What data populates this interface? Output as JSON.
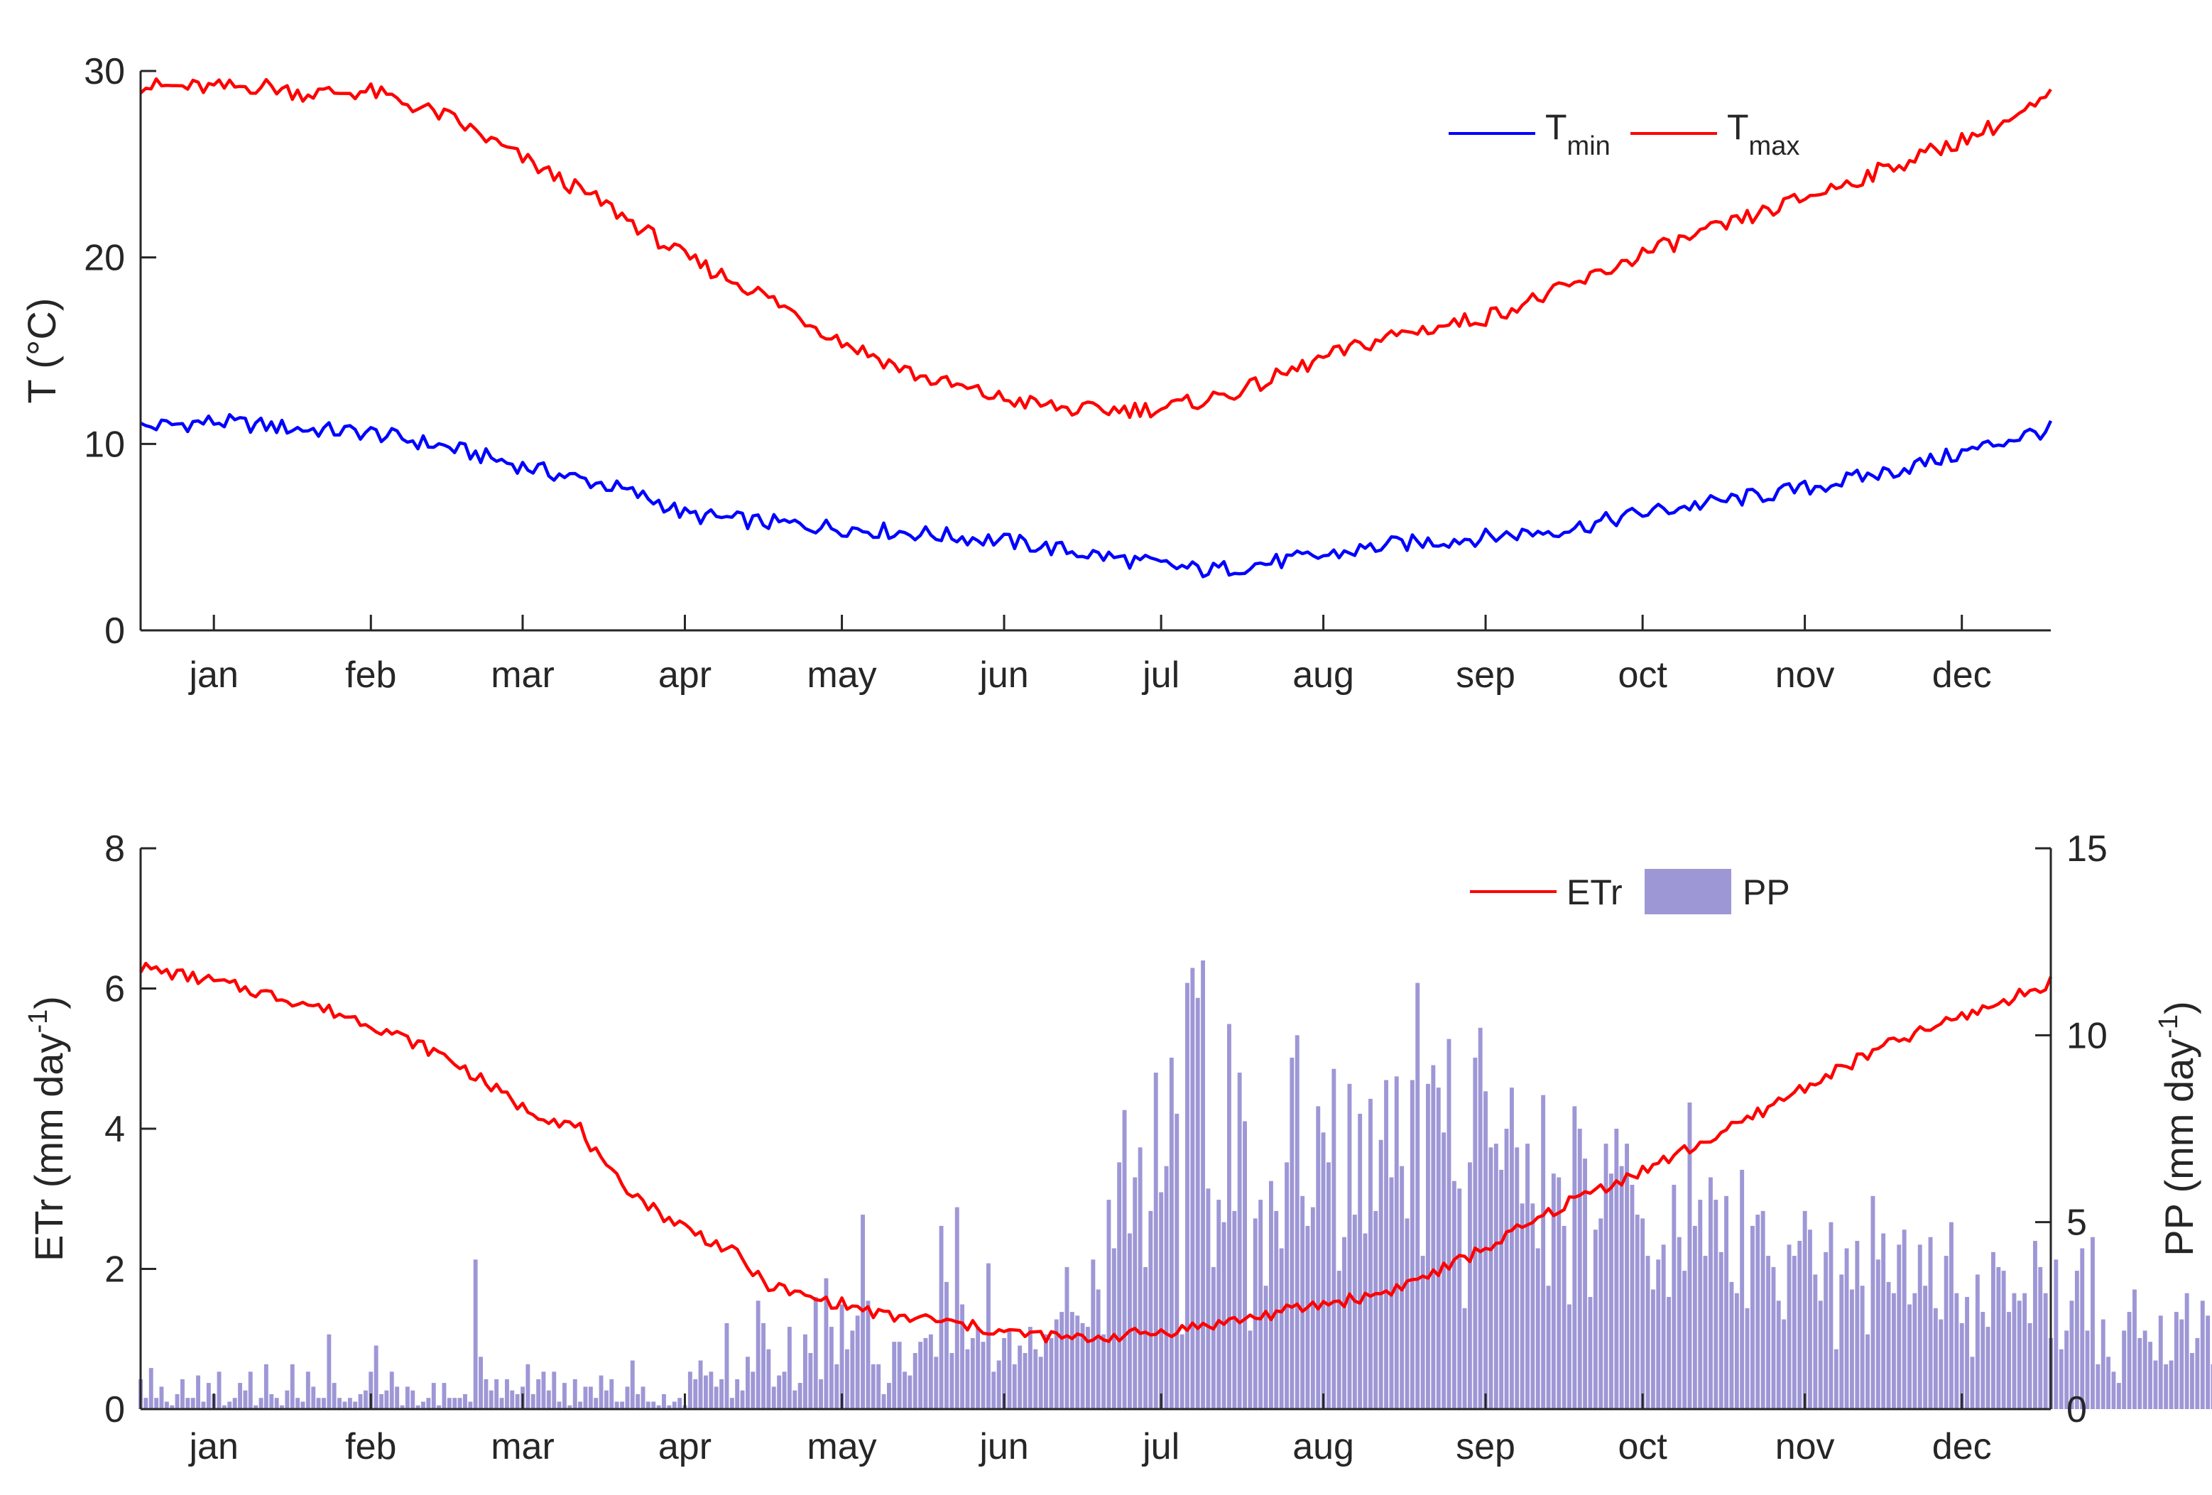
{
  "chart_data": [
    {
      "type": "line",
      "ylabel": "T (°C)",
      "ylim": [
        0,
        30
      ],
      "yticks": [
        0,
        10,
        20,
        30
      ],
      "xlim": [
        1,
        366
      ],
      "month_labels": [
        "jan",
        "feb",
        "mar",
        "apr",
        "may",
        "jun",
        "jul",
        "aug",
        "sep",
        "oct",
        "nov",
        "dec"
      ],
      "month_label_days": [
        15,
        45,
        74,
        105,
        135,
        166,
        196,
        227,
        258,
        288,
        319,
        349
      ],
      "grid": false,
      "legend_position": "top-right",
      "series": [
        {
          "legend_main": "T",
          "legend_sub": "min",
          "color": "#0000ff",
          "x": [
            1,
            15,
            32,
            45,
            60,
            74,
            90,
            100,
            105,
            120,
            135,
            150,
            166,
            180,
            196,
            205,
            213,
            227,
            240,
            258,
            275,
            288,
            305,
            319,
            335,
            349,
            360,
            366
          ],
          "y": [
            10.9,
            11.2,
            10.8,
            10.6,
            9.8,
            8.8,
            7.8,
            6.9,
            6.2,
            5.8,
            5.5,
            5.2,
            4.8,
            4.2,
            3.5,
            3.2,
            3.5,
            4.0,
            4.6,
            5.0,
            5.5,
            6.3,
            7.0,
            7.6,
            8.5,
            9.5,
            10.4,
            10.8
          ]
        },
        {
          "legend_main": "T",
          "legend_sub": "max",
          "color": "#ff0000",
          "x": [
            1,
            15,
            25,
            32,
            45,
            60,
            74,
            90,
            105,
            120,
            135,
            150,
            166,
            180,
            196,
            205,
            213,
            227,
            240,
            258,
            275,
            288,
            305,
            319,
            335,
            349,
            360,
            366
          ],
          "y": [
            29.2,
            29.1,
            29.2,
            28.8,
            28.9,
            27.5,
            25.3,
            22.8,
            20.0,
            18.0,
            15.5,
            13.6,
            12.4,
            11.8,
            11.9,
            12.4,
            13.0,
            14.6,
            15.8,
            16.8,
            18.5,
            20.2,
            21.8,
            23.2,
            24.8,
            26.3,
            27.6,
            28.6
          ]
        }
      ]
    },
    {
      "type": "bar+line",
      "ylabel_left": "ETr (mm day",
      "ylabel_right": "PP (mm day",
      "ylabel_exponent": "-1",
      "ylabel_close": ")",
      "ylim_left": [
        0,
        8
      ],
      "yticks_left": [
        0,
        2,
        4,
        6,
        8
      ],
      "ylim_right": [
        0,
        15
      ],
      "yticks_right": [
        0,
        5,
        10,
        15
      ],
      "xlim": [
        1,
        366
      ],
      "month_labels": [
        "jan",
        "feb",
        "mar",
        "apr",
        "may",
        "jun",
        "jul",
        "aug",
        "sep",
        "oct",
        "nov",
        "dec"
      ],
      "month_label_days": [
        15,
        45,
        74,
        105,
        135,
        166,
        196,
        227,
        258,
        288,
        319,
        349
      ],
      "grid": false,
      "legend_position": "top-right",
      "line_series": {
        "name": "ETr",
        "color": "#ff0000",
        "axis": "left",
        "x": [
          1,
          15,
          32,
          45,
          60,
          74,
          85,
          90,
          100,
          105,
          115,
          120,
          128,
          135,
          145,
          150,
          166,
          180,
          196,
          205,
          213,
          227,
          235,
          240,
          250,
          258,
          268,
          275,
          288,
          305,
          319,
          335,
          349,
          360,
          366
        ],
        "y": [
          6.3,
          6.1,
          5.8,
          5.5,
          5.0,
          4.3,
          4.0,
          3.4,
          2.8,
          2.6,
          2.2,
          1.8,
          1.6,
          1.5,
          1.3,
          1.3,
          1.1,
          1.0,
          1.1,
          1.2,
          1.3,
          1.5,
          1.6,
          1.7,
          2.0,
          2.3,
          2.7,
          3.0,
          3.4,
          4.0,
          4.6,
          5.2,
          5.6,
          5.9,
          6.1
        ]
      },
      "bar_series": {
        "name": "PP",
        "color": "#9e97d6",
        "axis": "right",
        "day_start": 1,
        "values": [
          0.8,
          0.3,
          1.1,
          0.3,
          0.6,
          0.2,
          0.1,
          0.4,
          0.8,
          0.3,
          0.3,
          0.9,
          0.2,
          0.7,
          0.4,
          1.0,
          0.1,
          0.2,
          0.3,
          0.7,
          0.5,
          1.0,
          0.1,
          0.3,
          1.2,
          0.4,
          0.3,
          0.1,
          0.5,
          1.2,
          0.3,
          0.2,
          1.0,
          0.6,
          0.3,
          0.3,
          2.0,
          0.7,
          0.3,
          0.2,
          0.3,
          0.2,
          0.4,
          0.5,
          1.0,
          1.7,
          0.4,
          0.5,
          1.0,
          0.6,
          0.1,
          0.6,
          0.5,
          0.1,
          0.2,
          0.3,
          0.7,
          0.1,
          0.7,
          0.3,
          0.3,
          0.3,
          0.4,
          0.2,
          4.0,
          1.4,
          0.8,
          0.5,
          0.8,
          0.3,
          0.8,
          0.5,
          0.4,
          0.6,
          1.2,
          0.4,
          0.8,
          1.0,
          0.5,
          1.0,
          0.2,
          0.7,
          0.1,
          0.8,
          0.2,
          0.6,
          0.6,
          0.3,
          0.9,
          0.5,
          0.8,
          0.2,
          0.2,
          0.6,
          1.3,
          0.4,
          0.6,
          0.2,
          0.2,
          0.1,
          0.4,
          0.1,
          0.2,
          0.3,
          0.1,
          1.0,
          0.8,
          1.3,
          0.9,
          1.0,
          0.6,
          0.8,
          2.3,
          0.3,
          0.8,
          0.5,
          1.4,
          1.0,
          2.9,
          2.3,
          1.6,
          0.6,
          0.9,
          1.0,
          2.2,
          0.5,
          0.7,
          2.0,
          1.5,
          3.0,
          0.8,
          3.5,
          2.2,
          1.2,
          2.8,
          1.6,
          2.1,
          2.5,
          5.2,
          2.9,
          1.2,
          1.2,
          0.4,
          0.7,
          1.8,
          1.8,
          1.0,
          0.9,
          1.5,
          1.8,
          1.9,
          2.0,
          1.4,
          4.9,
          3.4,
          1.5,
          5.4,
          2.8,
          1.6,
          1.9,
          2.2,
          1.8,
          3.9,
          1.0,
          1.3,
          1.9,
          2.1,
          1.2,
          1.7,
          1.5,
          2.2,
          1.6,
          1.4,
          2.0,
          1.9,
          2.4,
          2.6,
          3.8,
          2.6,
          2.5,
          2.3,
          2.2,
          4.0,
          3.2,
          2.0,
          5.6,
          4.3,
          6.6,
          8.0,
          4.7,
          6.2,
          7.0,
          3.8,
          5.3,
          9.0,
          5.8,
          6.5,
          9.4,
          7.9,
          2.0,
          11.4,
          11.8,
          11.0,
          12.0,
          5.9,
          3.8,
          5.6,
          5.0,
          10.3,
          5.3,
          9.0,
          7.7,
          2.1,
          5.1,
          5.6,
          3.3,
          6.1,
          5.3,
          4.3,
          6.6,
          9.4,
          10.0,
          5.7,
          4.9,
          5.4,
          8.1,
          7.4,
          6.6,
          9.1,
          3.7,
          4.6,
          8.7,
          5.2,
          7.9,
          4.7,
          8.3,
          5.3,
          7.2,
          8.8,
          6.2,
          8.9,
          6.5,
          5.1,
          8.8,
          11.4,
          4.1,
          8.7,
          9.2,
          8.6,
          7.4,
          9.9,
          6.1,
          5.9,
          2.7,
          6.6,
          9.4,
          10.2,
          8.5,
          7.0,
          7.1,
          6.4,
          7.5,
          8.6,
          7.0,
          5.5,
          7.1,
          5.5,
          4.3,
          8.4,
          3.3,
          6.3,
          6.2,
          4.9,
          2.8,
          8.1,
          7.5,
          6.7,
          3.0,
          4.8,
          5.1,
          7.1,
          6.3,
          7.5,
          6.5,
          7.1,
          6.0,
          5.2,
          5.1,
          4.1,
          3.2,
          4.0,
          4.4,
          3.0,
          6.0,
          4.6,
          3.7,
          8.2,
          4.9,
          5.6,
          4.1,
          6.2,
          5.6,
          4.2,
          5.7,
          3.4,
          3.1,
          6.4,
          2.7,
          4.9,
          5.2,
          5.3,
          4.1,
          3.8,
          2.9,
          2.4,
          4.4,
          4.1,
          4.5,
          5.3,
          4.8,
          3.6,
          2.9,
          4.2,
          5.0,
          1.6,
          3.6,
          4.3,
          3.2,
          4.5,
          3.3,
          2.0,
          5.7,
          4.0,
          4.7,
          3.4,
          3.1,
          4.4,
          4.8,
          2.8,
          3.1,
          4.4,
          3.3,
          4.6,
          2.7,
          2.4,
          4.1,
          5.0,
          3.1,
          2.3,
          3.0,
          1.4,
          3.6,
          2.6,
          2.2,
          4.2,
          3.8,
          3.7,
          2.6,
          3.1,
          2.9,
          3.1,
          2.3,
          4.5,
          3.8,
          3.1,
          1.9,
          4.0,
          1.6,
          2.1,
          2.9,
          3.7,
          4.3,
          2.1,
          4.6,
          1.2,
          2.4,
          1.4,
          1.0,
          0.7,
          2.1,
          2.6,
          3.2,
          1.9,
          2.1,
          1.8,
          1.3,
          2.5,
          1.2,
          1.3,
          2.6,
          2.4,
          3.1,
          1.5,
          1.9,
          2.9,
          2.5,
          1.2,
          3.6,
          1.6,
          3.0,
          3.2,
          1.8,
          2.2,
          1.9,
          3.7,
          2.2,
          2.7,
          1.6,
          1.7,
          1.8,
          2.0,
          1.4,
          1.8,
          2.6,
          1.7,
          2.1,
          0.9,
          1.6,
          2.4,
          1.9,
          1.7,
          1.8,
          2.2,
          0.8,
          0.7,
          1.2,
          2.0,
          1.0,
          2.1,
          1.7,
          1.5,
          1.2,
          0.4,
          1.5,
          1.9,
          1.6,
          1.2,
          1.5,
          1.2,
          1.6,
          2.3,
          1.2,
          1.8,
          2.9,
          2.1,
          1.7,
          1.3,
          2.2,
          1.4,
          0.6,
          1.6,
          1.7,
          2.0,
          1.6,
          0.8,
          0.9,
          1.3,
          1.7,
          2.0,
          1.5,
          1.1,
          1.6,
          1.8,
          1.6,
          1.1,
          1.2,
          1.5,
          1.4,
          1.2,
          2.2,
          1.7,
          1.1,
          1.3,
          1.8,
          1.1,
          1.3,
          1.6,
          1.3,
          1.0,
          0.9,
          1.3,
          1.6,
          1.4,
          0.6,
          1.0,
          0.9,
          1.0,
          0.7,
          1.2,
          1.4,
          0.9,
          0.7,
          0.9,
          1.0,
          1.3,
          1.0,
          1.0,
          0.7,
          1.3,
          0.5,
          1.1,
          1.0,
          1.5,
          1.2,
          1.0,
          0.4,
          1.1,
          1.6,
          1.0,
          1.7,
          0.9,
          1.4,
          0.9,
          0.9,
          0.6,
          0.9,
          1.4,
          1.2,
          0.8,
          1.0,
          1.1,
          0.7,
          1.2,
          0.4,
          0.5,
          1.0,
          0.5,
          1.1,
          0.8,
          2.0,
          0.4,
          0.6,
          0.9,
          1.0,
          0.7,
          1.0,
          0.5,
          0.4,
          0.8,
          0.5,
          1.0,
          0.5,
          0.5,
          0.7,
          0.4,
          0.9,
          0.6
        ]
      }
    }
  ]
}
